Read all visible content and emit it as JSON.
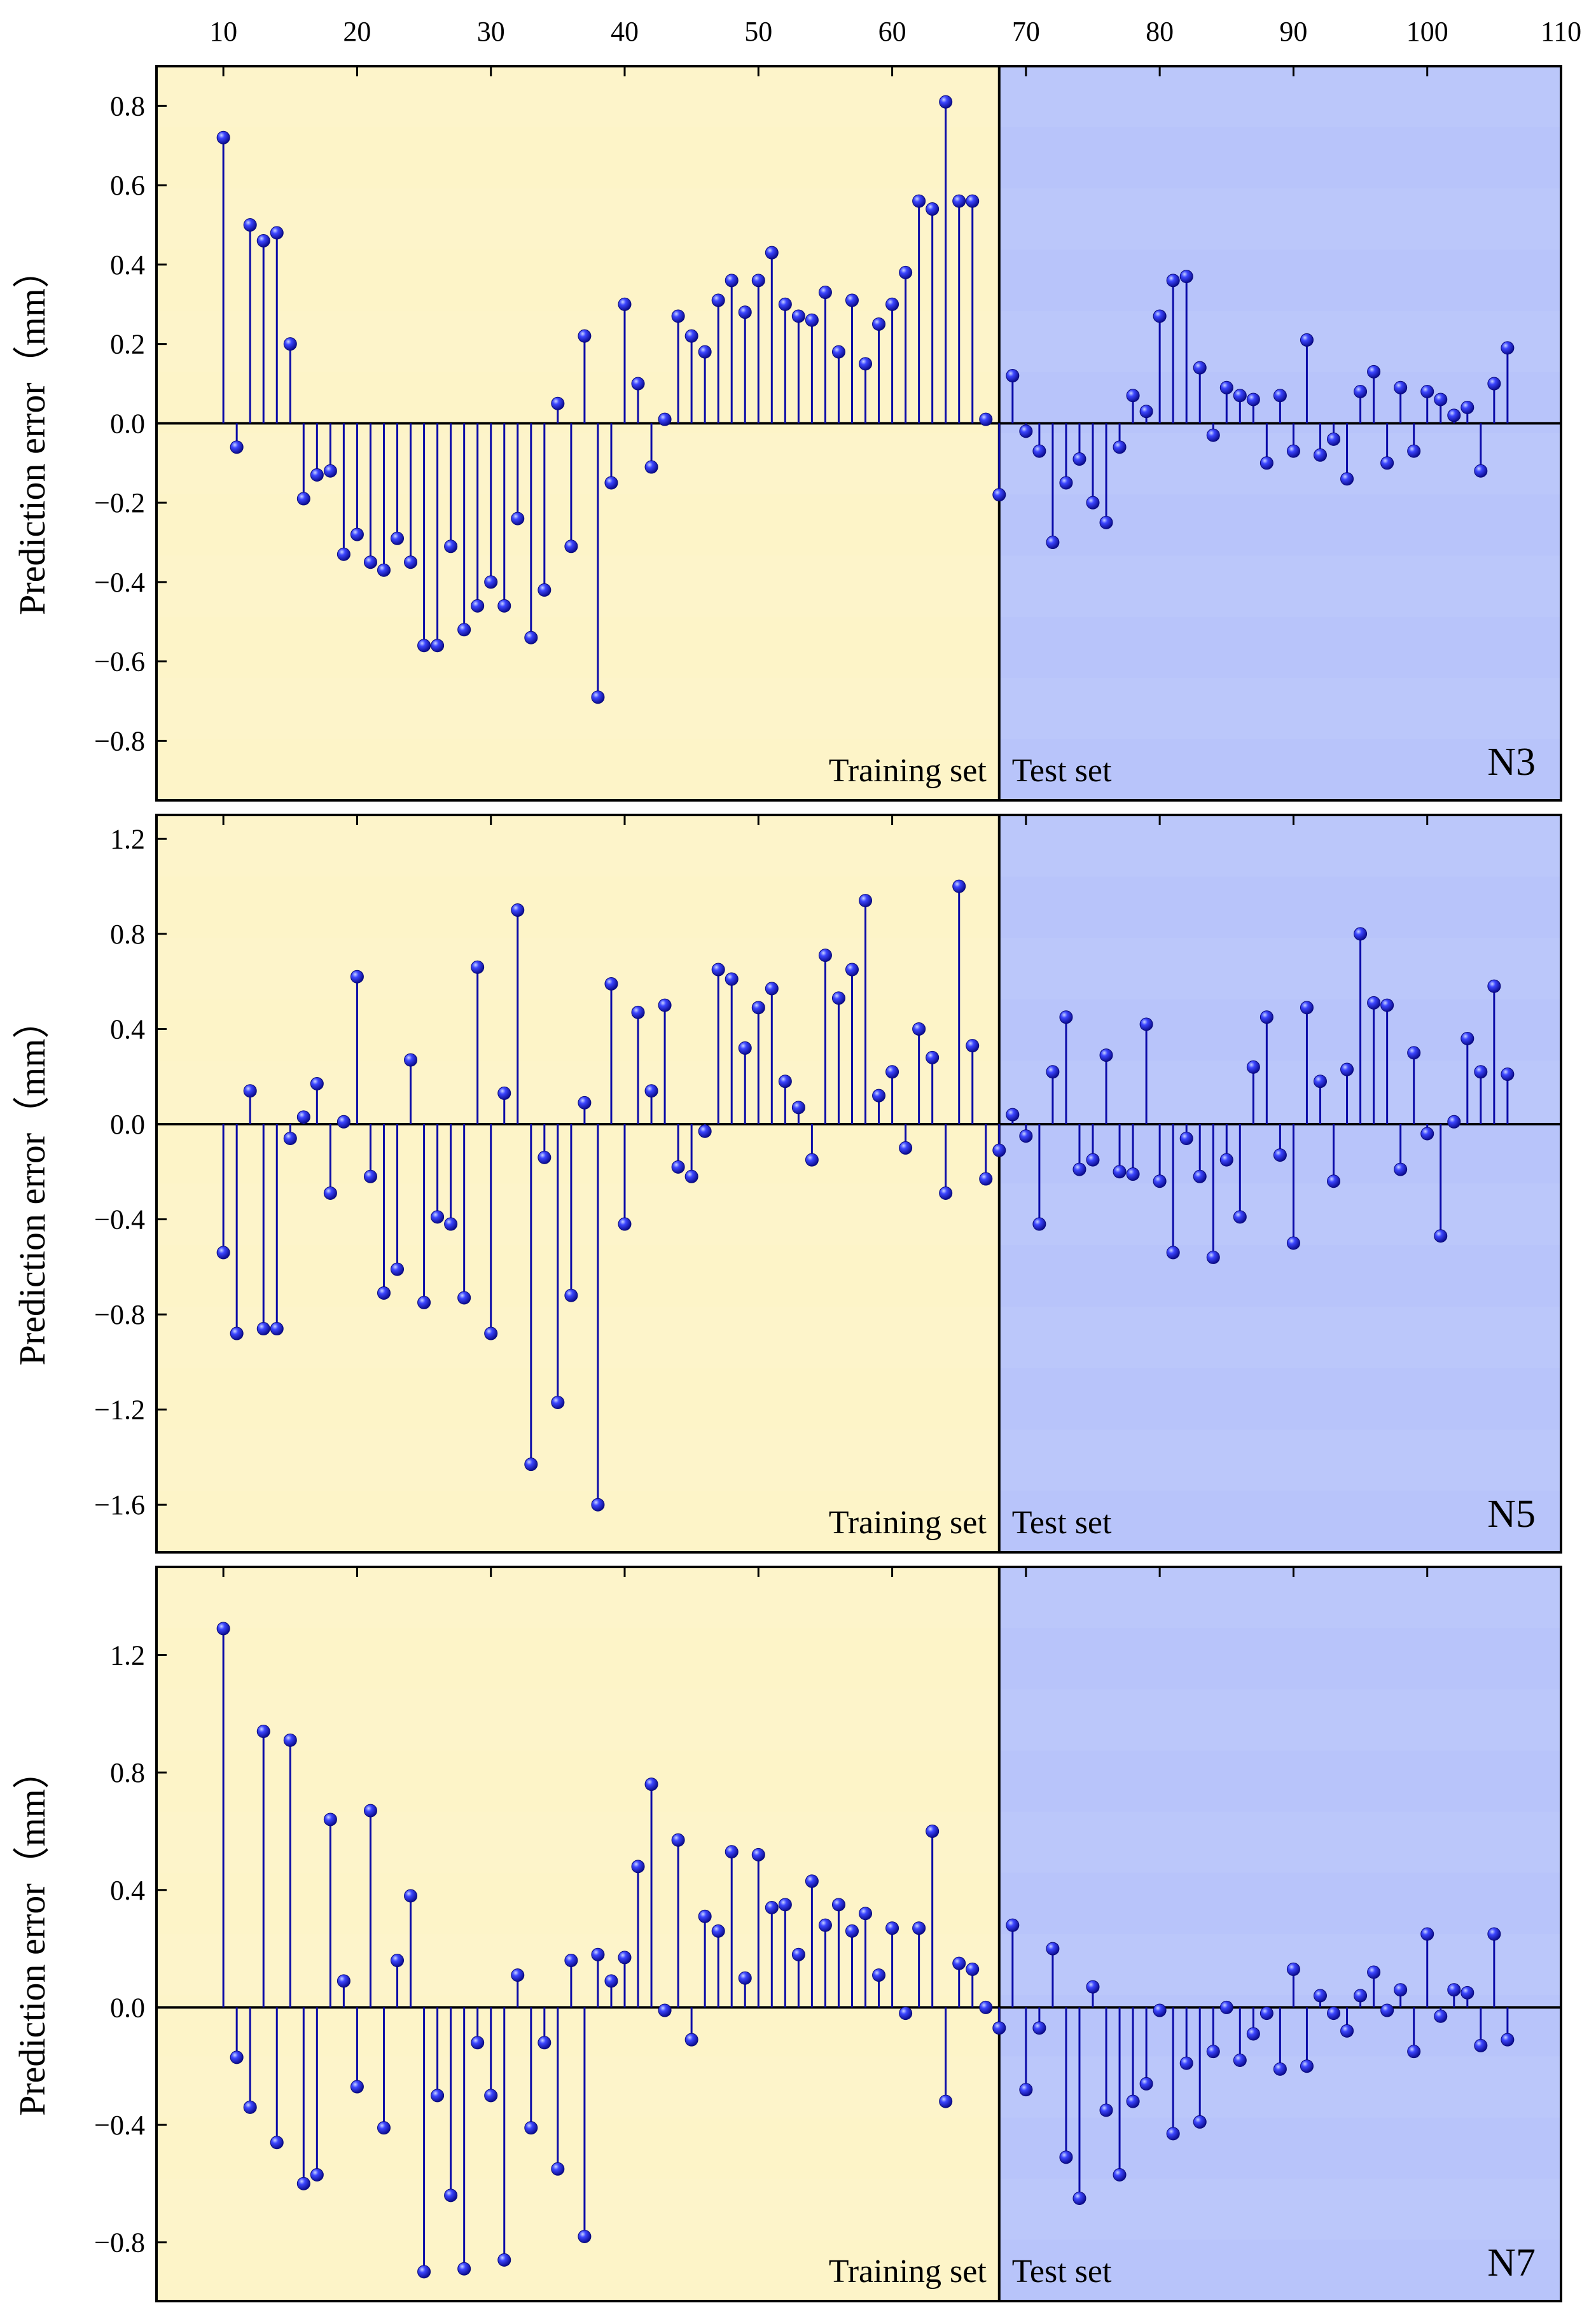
{
  "chart_data": {
    "type": "stem",
    "x_axis": {
      "range": [
        5,
        110
      ],
      "ticks": [
        10,
        20,
        30,
        40,
        50,
        60,
        70,
        80,
        90,
        100,
        110
      ],
      "tick_labels": [
        "10",
        "20",
        "30",
        "40",
        "50",
        "60",
        "70",
        "80",
        "90",
        "100",
        "110"
      ],
      "position": "top"
    },
    "ylabel": "Prediction error（mm）",
    "split_x": 68,
    "training_label": "Training set",
    "test_label": "Test set",
    "colors": {
      "training_bg": "#fdf4c8",
      "test_bg": "#b8c4fa",
      "stem": "#0b0ba8",
      "marker": "#1a1ae0"
    },
    "panels": [
      {
        "name": "N3",
        "ylim": [
          -0.95,
          0.9
        ],
        "yticks": [
          -0.8,
          -0.6,
          -0.4,
          -0.2,
          0.0,
          0.2,
          0.4,
          0.6,
          0.8
        ],
        "ytick_labels": [
          "−0.8",
          "−0.6",
          "−0.4",
          "−0.2",
          "0.0",
          "0.2",
          "0.4",
          "0.6",
          "0.8"
        ],
        "x": [
          10,
          11,
          12,
          13,
          14,
          15,
          16,
          17,
          18,
          19,
          20,
          21,
          22,
          23,
          24,
          25,
          26,
          27,
          28,
          29,
          30,
          31,
          32,
          33,
          34,
          35,
          36,
          37,
          38,
          39,
          40,
          41,
          42,
          43,
          44,
          45,
          46,
          47,
          48,
          49,
          50,
          51,
          52,
          53,
          54,
          55,
          56,
          57,
          58,
          59,
          60,
          61,
          62,
          63,
          64,
          65,
          66,
          67,
          68,
          69,
          70,
          71,
          72,
          73,
          74,
          75,
          76,
          77,
          78,
          79,
          80,
          81,
          82,
          83,
          84,
          85,
          86,
          87,
          88,
          89,
          90,
          91,
          92,
          93,
          94,
          95,
          96,
          97,
          98,
          99,
          100,
          101,
          102,
          103,
          104,
          105,
          106
        ],
        "values": [
          0.72,
          -0.06,
          0.5,
          0.46,
          0.48,
          0.2,
          -0.19,
          -0.13,
          -0.12,
          -0.33,
          -0.28,
          -0.35,
          -0.37,
          -0.29,
          -0.35,
          -0.56,
          -0.56,
          -0.31,
          -0.52,
          -0.46,
          -0.4,
          -0.46,
          -0.24,
          -0.54,
          -0.42,
          0.05,
          -0.31,
          0.22,
          -0.69,
          -0.15,
          0.3,
          0.1,
          -0.11,
          0.01,
          0.27,
          0.22,
          0.18,
          0.31,
          0.36,
          0.28,
          0.36,
          0.43,
          0.3,
          0.27,
          0.26,
          0.33,
          0.18,
          0.31,
          0.15,
          0.25,
          0.3,
          0.38,
          0.56,
          0.54,
          0.81,
          0.56,
          0.56,
          0.01,
          -0.18,
          0.12,
          -0.02,
          -0.07,
          -0.3,
          -0.15,
          -0.09,
          -0.2,
          -0.25,
          -0.06,
          0.07,
          0.03,
          0.27,
          0.36,
          0.37,
          0.14,
          -0.03,
          0.09,
          0.07,
          0.06,
          -0.1,
          0.07,
          -0.07,
          0.21,
          -0.08,
          -0.04,
          -0.14,
          0.08,
          0.13,
          -0.1,
          0.09,
          -0.07,
          0.08,
          0.06,
          0.02,
          0.04,
          -0.12,
          0.1,
          0.19
        ]
      },
      {
        "name": "N5",
        "ylim": [
          -1.8,
          1.3
        ],
        "yticks": [
          -1.6,
          -1.2,
          -0.8,
          -0.4,
          0.0,
          0.4,
          0.8,
          1.2
        ],
        "ytick_labels": [
          "−1.6",
          "−1.2",
          "−0.8",
          "−0.4",
          "0.0",
          "0.4",
          "0.8",
          "1.2"
        ],
        "x": [
          10,
          11,
          12,
          13,
          14,
          15,
          16,
          17,
          18,
          19,
          20,
          21,
          22,
          23,
          24,
          25,
          26,
          27,
          28,
          29,
          30,
          31,
          32,
          33,
          34,
          35,
          36,
          37,
          38,
          39,
          40,
          41,
          42,
          43,
          44,
          45,
          46,
          47,
          48,
          49,
          50,
          51,
          52,
          53,
          54,
          55,
          56,
          57,
          58,
          59,
          60,
          61,
          62,
          63,
          64,
          65,
          66,
          67,
          68,
          69,
          70,
          71,
          72,
          73,
          74,
          75,
          76,
          77,
          78,
          79,
          80,
          81,
          82,
          83,
          84,
          85,
          86,
          87,
          88,
          89,
          90,
          91,
          92,
          93,
          94,
          95,
          96,
          97,
          98,
          99,
          100,
          101,
          102,
          103,
          104,
          105,
          106
        ],
        "values": [
          -0.54,
          -0.88,
          0.14,
          -0.86,
          -0.86,
          -0.06,
          0.03,
          0.17,
          -0.29,
          0.01,
          0.62,
          -0.22,
          -0.71,
          -0.61,
          0.27,
          -0.75,
          -0.39,
          -0.42,
          -0.73,
          0.66,
          -0.88,
          0.13,
          0.9,
          -1.43,
          -0.14,
          -1.17,
          -0.72,
          0.09,
          -1.6,
          0.59,
          -0.42,
          0.47,
          0.14,
          0.5,
          -0.18,
          -0.22,
          -0.03,
          0.65,
          0.61,
          0.32,
          0.49,
          0.57,
          0.18,
          0.07,
          -0.15,
          0.71,
          0.53,
          0.65,
          0.94,
          0.12,
          0.22,
          -0.1,
          0.4,
          0.28,
          -0.29,
          1.0,
          0.33,
          -0.23,
          -0.11,
          0.04,
          -0.05,
          -0.42,
          0.22,
          0.45,
          -0.19,
          -0.15,
          0.29,
          -0.2,
          -0.21,
          0.42,
          -0.24,
          -0.54,
          -0.06,
          -0.22,
          -0.56,
          -0.15,
          -0.39,
          0.24,
          0.45,
          -0.13,
          -0.5,
          0.49,
          0.18,
          -0.24,
          0.23,
          0.8,
          0.51,
          0.5,
          -0.19,
          0.3,
          -0.04,
          -0.47,
          0.01,
          0.36,
          0.22,
          0.58,
          0.21
        ]
      },
      {
        "name": "N7",
        "ylim": [
          -1.0,
          1.5
        ],
        "yticks": [
          -0.8,
          -0.4,
          0.0,
          0.4,
          0.8,
          1.2
        ],
        "ytick_labels": [
          "−0.8",
          "−0.4",
          "0.0",
          "0.4",
          "0.8",
          "1.2"
        ],
        "x": [
          10,
          11,
          12,
          13,
          14,
          15,
          16,
          17,
          18,
          19,
          20,
          21,
          22,
          23,
          24,
          25,
          26,
          27,
          28,
          29,
          30,
          31,
          32,
          33,
          34,
          35,
          36,
          37,
          38,
          39,
          40,
          41,
          42,
          43,
          44,
          45,
          46,
          47,
          48,
          49,
          50,
          51,
          52,
          53,
          54,
          55,
          56,
          57,
          58,
          59,
          60,
          61,
          62,
          63,
          64,
          65,
          66,
          67,
          68,
          69,
          70,
          71,
          72,
          73,
          74,
          75,
          76,
          77,
          78,
          79,
          80,
          81,
          82,
          83,
          84,
          85,
          86,
          87,
          88,
          89,
          90,
          91,
          92,
          93,
          94,
          95,
          96,
          97,
          98,
          99,
          100,
          101,
          102,
          103,
          104,
          105,
          106
        ],
        "values": [
          1.29,
          -0.17,
          -0.34,
          0.94,
          -0.46,
          0.91,
          -0.6,
          -0.57,
          0.64,
          0.09,
          -0.27,
          0.67,
          -0.41,
          0.16,
          0.38,
          -0.9,
          -0.3,
          -0.64,
          -0.89,
          -0.12,
          -0.3,
          -0.86,
          0.11,
          -0.41,
          -0.12,
          -0.55,
          0.16,
          -0.78,
          0.18,
          0.09,
          0.17,
          0.48,
          0.76,
          -0.01,
          0.57,
          -0.11,
          0.31,
          0.26,
          0.53,
          0.1,
          0.52,
          0.34,
          0.35,
          0.18,
          0.43,
          0.28,
          0.35,
          0.26,
          0.32,
          0.11,
          0.27,
          -0.02,
          0.27,
          0.6,
          -0.32,
          0.15,
          0.13,
          0.0,
          -0.07,
          0.28,
          -0.28,
          -0.07,
          0.2,
          -0.51,
          -0.65,
          0.07,
          -0.35,
          -0.57,
          -0.32,
          -0.26,
          -0.01,
          -0.43,
          -0.19,
          -0.39,
          -0.15,
          0.0,
          -0.18,
          -0.09,
          -0.02,
          -0.21,
          0.13,
          -0.2,
          0.04,
          -0.02,
          -0.08,
          0.04,
          0.12,
          -0.01,
          0.06,
          -0.15,
          0.25,
          -0.03,
          0.06,
          0.05,
          -0.13,
          0.25,
          -0.11
        ]
      }
    ]
  }
}
